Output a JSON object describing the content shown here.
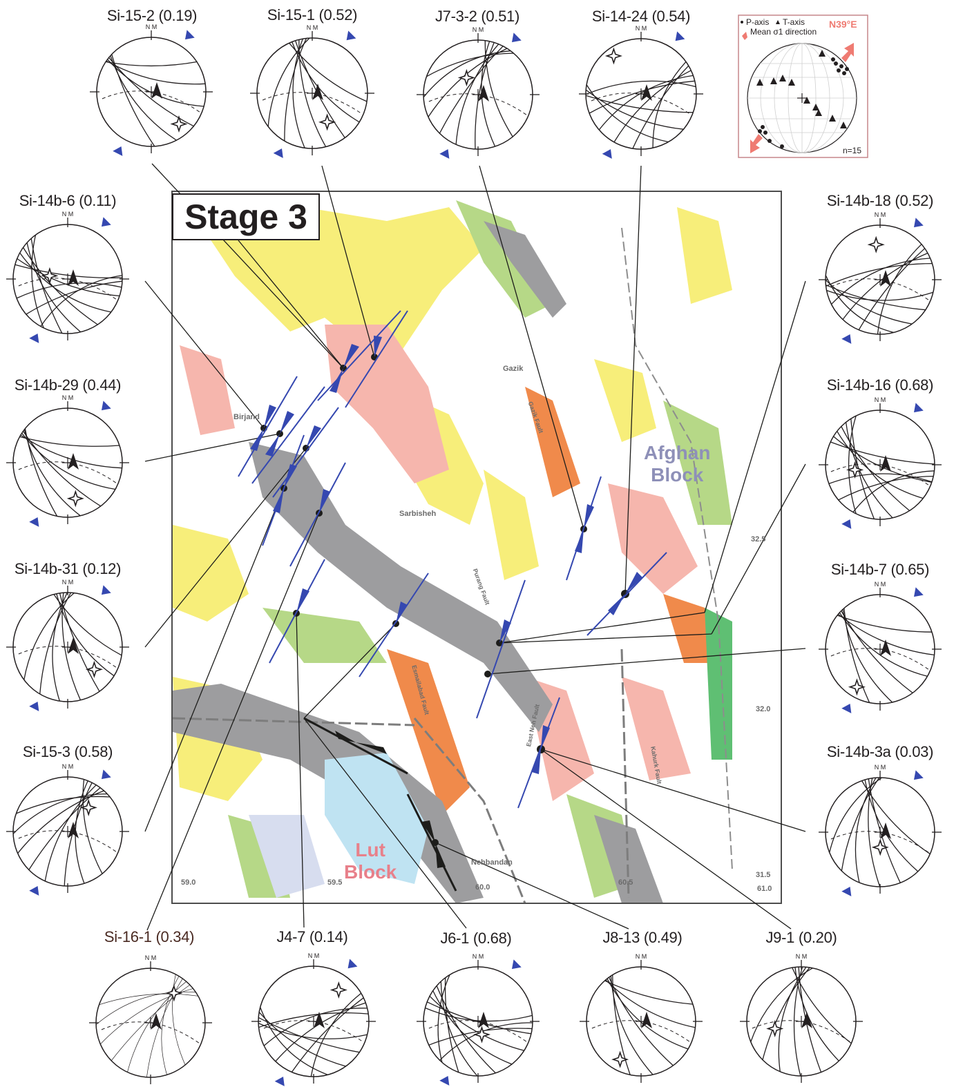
{
  "title": "Stage 3",
  "colors": {
    "plate_arrow": "#3548b0",
    "mean_sigma1": "#ef7b72",
    "lut_label": "#e8808a",
    "afghan_label": "#8e90b8",
    "map_yellow": "#f7ee7a",
    "map_pink": "#f6b6ad",
    "map_gray": "#9d9d9f",
    "map_green": "#b6d887",
    "map_orange": "#f08a4b"
  },
  "blocks": {
    "afghan": "Afghan\nBlock",
    "lut": "Lut\nBlock"
  },
  "towns": [
    "Birjand",
    "Gazik",
    "Sarbisheh",
    "Nehbandan"
  ],
  "faults": [
    "Gazik Fault",
    "Purang Fault",
    "Esmailabad Fault",
    "East Neh Fault",
    "Kahurk Fault"
  ],
  "coordinates": {
    "longitudes": [
      "59.0",
      "59.5",
      "60.0",
      "60.5",
      "61.0"
    ],
    "latitudes": [
      "32.5",
      "32.0",
      "31.5"
    ]
  },
  "legend": {
    "p_axis": "P-axis",
    "t_axis": "T-axis",
    "mean_sigma1": "Mean σ1 direction",
    "direction": "N39°E",
    "count": "n=15"
  },
  "north_label": "N M",
  "sites": [
    {
      "id": "Si-15-2",
      "ratio": "(0.19)"
    },
    {
      "id": "Si-15-1",
      "ratio": "(0.52)"
    },
    {
      "id": "J7-3-2",
      "ratio": "(0.51)"
    },
    {
      "id": "Si-14-24",
      "ratio": "(0.54)"
    },
    {
      "id": "Si-14b-6",
      "ratio": "(0.11)"
    },
    {
      "id": "Si-14b-29",
      "ratio": "(0.44)"
    },
    {
      "id": "Si-14b-31",
      "ratio": "(0.12)"
    },
    {
      "id": "Si-15-3",
      "ratio": "(0.58)"
    },
    {
      "id": "Si-14b-18",
      "ratio": "(0.52)"
    },
    {
      "id": "Si-14b-16",
      "ratio": "(0.68)"
    },
    {
      "id": "Si-14b-7",
      "ratio": "(0.65)"
    },
    {
      "id": "Si-14b-3a",
      "ratio": "(0.03)"
    },
    {
      "id": "Si-16-1",
      "ratio": "(0.34)"
    },
    {
      "id": "J4-7",
      "ratio": "(0.14)"
    },
    {
      "id": "J6-1",
      "ratio": "(0.68)"
    },
    {
      "id": "J8-13",
      "ratio": "(0.49)"
    },
    {
      "id": "J9-1",
      "ratio": "(0.20)"
    }
  ]
}
